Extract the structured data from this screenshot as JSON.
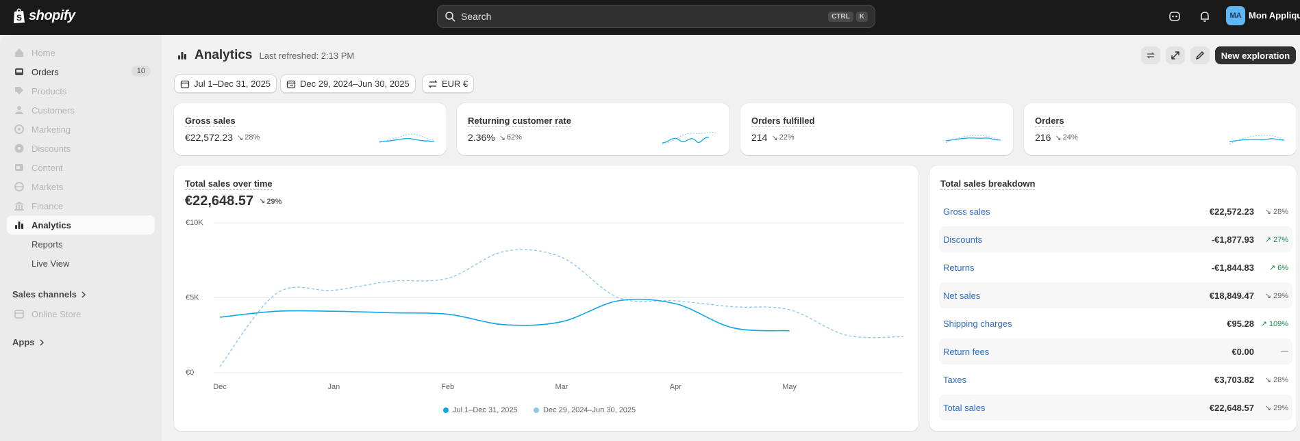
{
  "brand": {
    "name": "shopify"
  },
  "search": {
    "placeholder": "Search",
    "kbd": [
      "CTRL",
      "K"
    ]
  },
  "account": {
    "initials": "MA",
    "store_name": "Mon Applique"
  },
  "sidebar": {
    "items": [
      {
        "label": "Home",
        "icon": "home-icon",
        "state": "disabled"
      },
      {
        "label": "Orders",
        "icon": "inbox-icon",
        "state": "normal",
        "badge": "10"
      },
      {
        "label": "Products",
        "icon": "tag-icon",
        "state": "disabled"
      },
      {
        "label": "Customers",
        "icon": "person-icon",
        "state": "disabled"
      },
      {
        "label": "Marketing",
        "icon": "target-icon",
        "state": "disabled"
      },
      {
        "label": "Discounts",
        "icon": "discount-icon",
        "state": "disabled"
      },
      {
        "label": "Content",
        "icon": "content-icon",
        "state": "disabled"
      },
      {
        "label": "Markets",
        "icon": "globe-icon",
        "state": "disabled"
      },
      {
        "label": "Finance",
        "icon": "bank-icon",
        "state": "disabled"
      },
      {
        "label": "Analytics",
        "icon": "chart-icon",
        "state": "active"
      },
      {
        "label": "Reports",
        "state": "sub"
      },
      {
        "label": "Live View",
        "state": "sub"
      }
    ],
    "sales_channels": "Sales channels",
    "online_store": "Online Store",
    "apps": "Apps"
  },
  "header": {
    "title": "Analytics",
    "refreshed": "Last refreshed: 2:13 PM",
    "new_exploration": "New exploration"
  },
  "filters": {
    "date_range": "Jul 1–Dec 31, 2025",
    "compare_range": "Dec 29, 2024–Jun 30, 2025",
    "currency": "EUR €"
  },
  "metrics": [
    {
      "title": "Gross sales",
      "value": "€22,572.23",
      "delta": "28%",
      "direction": "down"
    },
    {
      "title": "Returning customer rate",
      "value": "2.36%",
      "delta": "62%",
      "direction": "down"
    },
    {
      "title": "Orders fulfilled",
      "value": "214",
      "delta": "22%",
      "direction": "down"
    },
    {
      "title": "Orders",
      "value": "216",
      "delta": "24%",
      "direction": "down"
    }
  ],
  "sales_chart": {
    "title": "Total sales over time",
    "total": "€22,648.57",
    "delta": "29%",
    "legend": [
      "Jul 1–Dec 31, 2025",
      "Dec 29, 2024–Jun 30, 2025"
    ]
  },
  "chart_data": {
    "type": "line",
    "title": "Total sales over time",
    "y_ticks": [
      "€10K",
      "€5K",
      "€0"
    ],
    "ylim": [
      0,
      10000
    ],
    "x_ticks": [
      "Dec",
      "Jan",
      "Feb",
      "Mar",
      "Apr",
      "May"
    ],
    "series": [
      {
        "name": "Jul 1–Dec 31, 2025",
        "color": "#0ea5e9",
        "style": "solid",
        "x": [
          0,
          0.5,
          1,
          1.5,
          2,
          2.5,
          3,
          3.5,
          4,
          4.5,
          5
        ],
        "y": [
          3700,
          4100,
          4100,
          4000,
          3900,
          3200,
          3400,
          4800,
          4600,
          3000,
          2800
        ]
      },
      {
        "name": "Dec 29, 2024–Jun 30, 2025",
        "color": "#8cc8f0",
        "style": "dashed",
        "x": [
          0,
          0.5,
          1,
          1.5,
          2,
          2.5,
          3,
          3.5,
          4,
          4.5,
          5,
          5.5,
          6
        ],
        "y": [
          400,
          5300,
          5500,
          6100,
          6300,
          8100,
          7700,
          5000,
          4800,
          4400,
          4200,
          2500,
          2400
        ]
      }
    ]
  },
  "breakdown": {
    "title": "Total sales breakdown",
    "rows": [
      {
        "label": "Gross sales",
        "value": "€22,572.23",
        "delta": "28%",
        "direction": "down"
      },
      {
        "label": "Discounts",
        "value": "-€1,877.93",
        "delta": "27%",
        "direction": "up"
      },
      {
        "label": "Returns",
        "value": "-€1,844.83",
        "delta": "6%",
        "direction": "up"
      },
      {
        "label": "Net sales",
        "value": "€18,849.47",
        "delta": "29%",
        "direction": "down"
      },
      {
        "label": "Shipping charges",
        "value": "€95.28",
        "delta": "109%",
        "direction": "up"
      },
      {
        "label": "Return fees",
        "value": "€0.00",
        "delta": "—",
        "direction": "none"
      },
      {
        "label": "Taxes",
        "value": "€3,703.82",
        "delta": "28%",
        "direction": "down"
      },
      {
        "label": "Total sales",
        "value": "€22,648.57",
        "delta": "29%",
        "direction": "down"
      }
    ]
  }
}
